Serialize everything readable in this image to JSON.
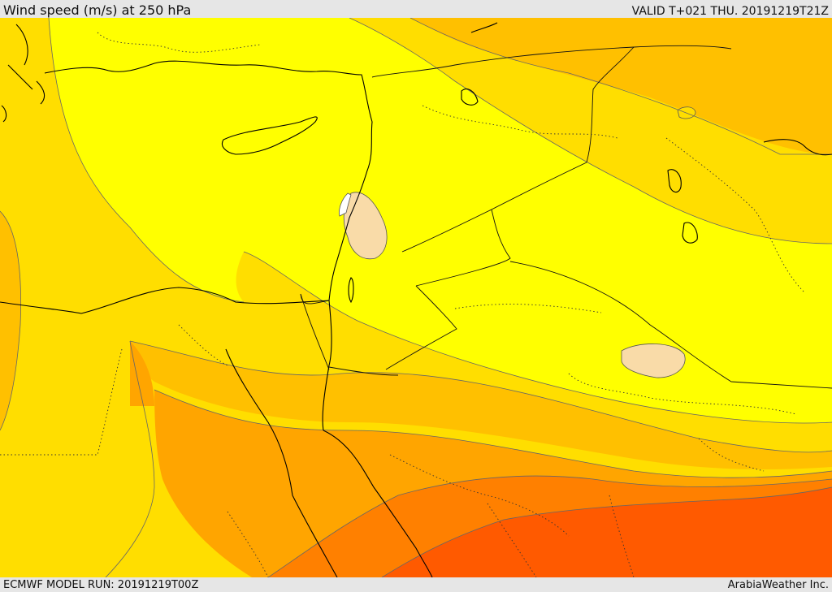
{
  "header": {
    "title": "Wind speed (m/s) at 250 hPa",
    "valid": "VALID T+021 THU. 20191219T21Z"
  },
  "footer": {
    "model_run": "ECMWF MODEL RUN: 20191219T00Z",
    "credit": "ArabiaWeather Inc."
  },
  "map": {
    "field": "wind-speed-250hPa",
    "colors": {
      "band_yellow": "#ffff00",
      "band_gold": "#ffde00",
      "band_amber": "#ffc000",
      "band_orange": "#ffa500",
      "band_darkorange": "#ff8000",
      "band_red": "#ff5a00",
      "low_speed": "#f9dba8",
      "calm": "#ffffff",
      "coastline": "#000000",
      "border": "#000000"
    }
  }
}
